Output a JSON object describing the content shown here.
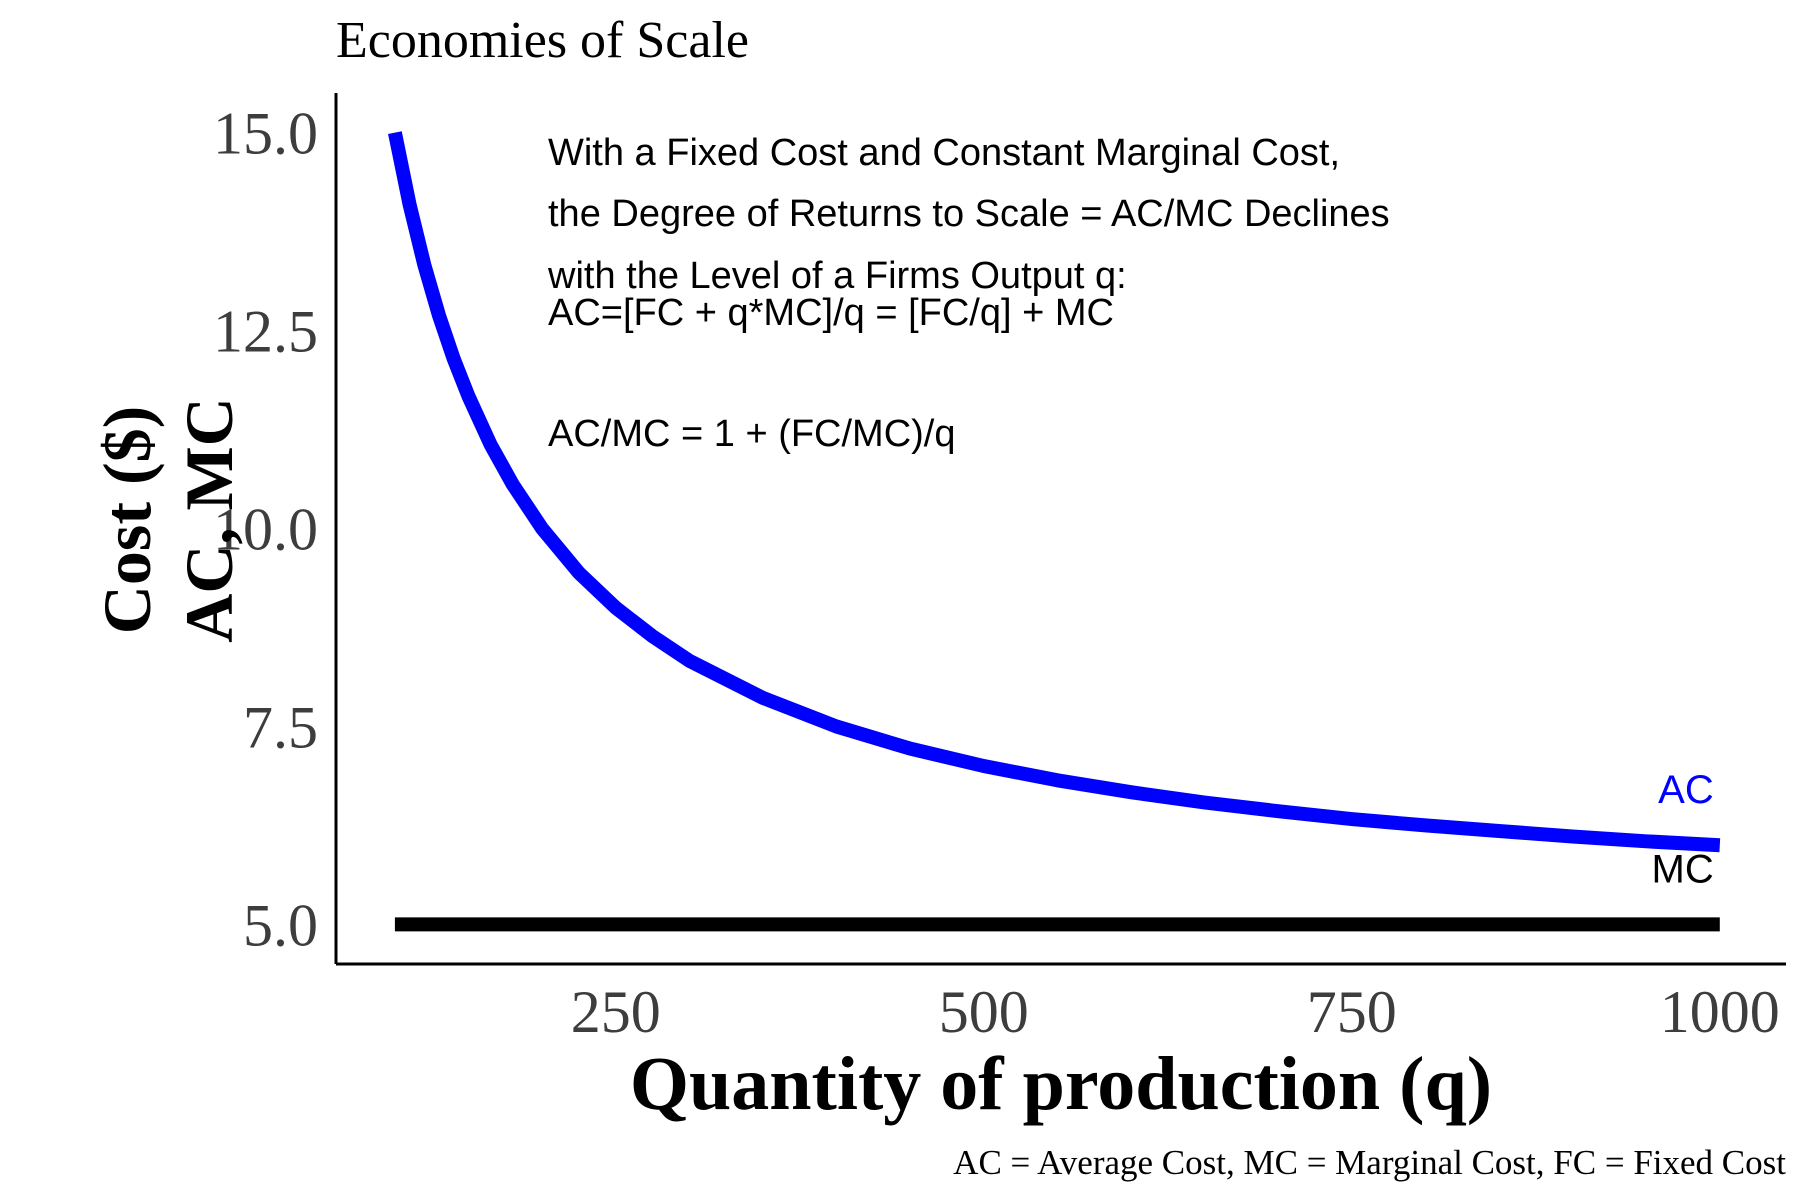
{
  "chart_data": {
    "type": "line",
    "title": "Economies of Scale",
    "xlabel": "Quantity of production (q)",
    "ylabel_lines": [
      "Cost ($)",
      "AC, MC"
    ],
    "caption": "AC = Average Cost, MC = Marginal Cost, FC = Fixed Cost",
    "xlim": [
      60,
      1045
    ],
    "ylim": [
      4.5,
      15.5
    ],
    "x_ticks": [
      250,
      500,
      750,
      1000
    ],
    "x_tick_labels": [
      "250",
      "500",
      "750",
      "1000"
    ],
    "y_ticks": [
      5.0,
      7.5,
      10.0,
      12.5,
      15.0
    ],
    "y_tick_labels": [
      "5.0",
      "7.5",
      "10.0",
      "12.5",
      "15.0"
    ],
    "grid": false,
    "annotations": [
      "With a Fixed Cost and Constant Marginal Cost,",
      "the Degree of Returns to Scale = AC/MC Declines",
      "with the Level of a Firms Output q:",
      "AC=[FC + q*MC]/q = [FC/q] + MC",
      "AC/MC = 1 + (FC/MC)/q"
    ],
    "series": [
      {
        "name": "AC",
        "color": "#0000ff",
        "x": [
          100,
          110,
          120,
          130,
          140,
          150,
          165,
          180,
          200,
          225,
          250,
          275,
          300,
          350,
          400,
          450,
          500,
          550,
          600,
          650,
          700,
          750,
          800,
          850,
          900,
          950,
          1000
        ],
        "y": [
          15.0,
          14.09,
          13.33,
          12.69,
          12.14,
          11.67,
          11.06,
          10.56,
          10.0,
          9.44,
          9.0,
          8.64,
          8.33,
          7.86,
          7.5,
          7.22,
          7.0,
          6.82,
          6.67,
          6.54,
          6.43,
          6.33,
          6.25,
          6.18,
          6.11,
          6.05,
          6.0
        ]
      },
      {
        "name": "MC",
        "color": "#000000",
        "x": [
          100,
          1000
        ],
        "y": [
          5.0,
          5.0
        ]
      }
    ]
  }
}
